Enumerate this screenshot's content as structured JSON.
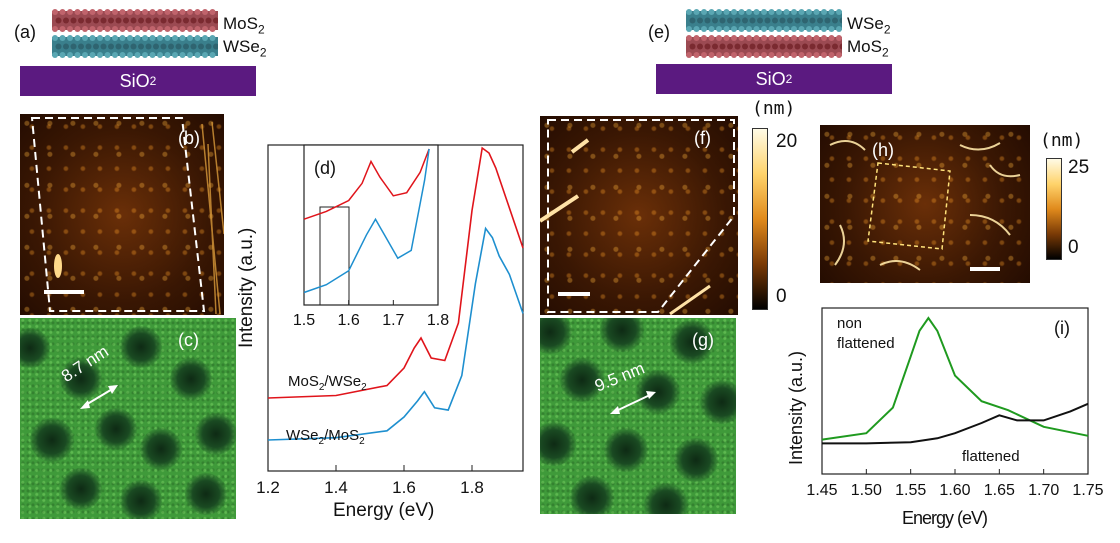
{
  "panels": {
    "a": "(a)",
    "b": "(b)",
    "c": "(c)",
    "d": "(d)",
    "e": "(e)",
    "f": "(f)",
    "g": "(g)",
    "h": "(h)",
    "i": "(i)"
  },
  "stack_a": {
    "top": "MoS",
    "top_sub": "2",
    "bottom": "WSe",
    "bottom_sub": "2",
    "substrate": "SiO",
    "substrate_sub": "2"
  },
  "stack_e": {
    "top": "WSe",
    "top_sub": "2",
    "bottom": "MoS",
    "bottom_sub": "2",
    "substrate": "SiO",
    "substrate_sub": "2"
  },
  "moire_c": "8.7 nm",
  "moire_g": "9.5 nm",
  "colorbar_f": {
    "unit": "(nm)",
    "max": "20",
    "min": "0"
  },
  "colorbar_h": {
    "unit": "(nm)",
    "max": "25",
    "min": "0"
  },
  "colors": {
    "red": "#e0141b",
    "blue": "#1e8fcf",
    "green": "#1f9a1f",
    "black": "#111111",
    "substrate": "#5b1a80"
  },
  "chart_data": [
    {
      "type": "line",
      "panel": "d",
      "xlabel": "Energy (eV)",
      "ylabel": "Intensity (a.u.)",
      "xlim": [
        1.2,
        1.95
      ],
      "xticks": [
        "1.2",
        "1.4",
        "1.6",
        "1.8"
      ],
      "series": [
        {
          "name": "MoS2/WSe2",
          "label_main": "MoS",
          "label_sub1": "2",
          "label_mid": "/WSe",
          "label_sub2": "2",
          "color": "#e0141b",
          "x": [
            1.2,
            1.4,
            1.55,
            1.6,
            1.63,
            1.65,
            1.68,
            1.72,
            1.76,
            1.8,
            1.83,
            1.85,
            1.87,
            1.9,
            1.95
          ],
          "y": [
            0.0,
            0.01,
            0.05,
            0.12,
            0.2,
            0.24,
            0.16,
            0.15,
            0.3,
            0.75,
            1.0,
            0.98,
            0.92,
            0.8,
            0.6
          ]
        },
        {
          "name": "WSe2/MoS2",
          "label_main": "WSe",
          "label_sub1": "2",
          "label_mid": "/MoS",
          "label_sub2": "2",
          "color": "#1e8fcf",
          "x": [
            1.2,
            1.4,
            1.55,
            1.6,
            1.64,
            1.66,
            1.69,
            1.73,
            1.77,
            1.81,
            1.84,
            1.86,
            1.88,
            1.91,
            1.95
          ],
          "y": [
            0.0,
            0.01,
            0.04,
            0.1,
            0.17,
            0.21,
            0.14,
            0.13,
            0.28,
            0.68,
            0.92,
            0.88,
            0.8,
            0.72,
            0.55
          ]
        }
      ],
      "inset": {
        "xlim": [
          1.5,
          1.8
        ],
        "xticks": [
          "1.5",
          "1.6",
          "1.7",
          "1.8"
        ],
        "series": [
          {
            "name": "MoS2/WSe2",
            "color": "#e0141b",
            "x": [
              1.5,
              1.55,
              1.6,
              1.63,
              1.65,
              1.67,
              1.7,
              1.73,
              1.76,
              1.78
            ],
            "y": [
              0.55,
              0.6,
              0.67,
              0.78,
              0.92,
              0.82,
              0.7,
              0.72,
              0.85,
              1.0
            ]
          },
          {
            "name": "WSe2/MoS2",
            "color": "#1e8fcf",
            "x": [
              1.5,
              1.55,
              1.6,
              1.64,
              1.66,
              1.68,
              1.71,
              1.74,
              1.77,
              1.78
            ],
            "y": [
              0.08,
              0.13,
              0.22,
              0.45,
              0.55,
              0.45,
              0.3,
              0.35,
              0.8,
              1.0
            ]
          }
        ]
      }
    },
    {
      "type": "line",
      "panel": "i",
      "xlabel": "Energy (eV)",
      "ylabel": "Intensity (a.u.)",
      "xlim": [
        1.45,
        1.75
      ],
      "xticks": [
        "1.45",
        "1.50",
        "1.55",
        "1.60",
        "1.65",
        "1.70",
        "1.75"
      ],
      "series": [
        {
          "name": "non flattened",
          "label_line1": "non",
          "label_line2": "flattened",
          "color": "#1f9a1f",
          "x": [
            1.45,
            1.5,
            1.53,
            1.55,
            1.56,
            1.57,
            1.58,
            1.6,
            1.63,
            1.66,
            1.7,
            1.75
          ],
          "y": [
            0.05,
            0.1,
            0.3,
            0.7,
            0.9,
            1.0,
            0.9,
            0.55,
            0.35,
            0.28,
            0.15,
            0.08
          ]
        },
        {
          "name": "flattened",
          "label_line1": "flattened",
          "color": "#111111",
          "x": [
            1.45,
            1.5,
            1.55,
            1.58,
            1.6,
            1.63,
            1.65,
            1.67,
            1.7,
            1.73,
            1.75
          ],
          "y": [
            0.02,
            0.02,
            0.03,
            0.06,
            0.1,
            0.18,
            0.24,
            0.2,
            0.2,
            0.27,
            0.33
          ]
        }
      ]
    }
  ]
}
